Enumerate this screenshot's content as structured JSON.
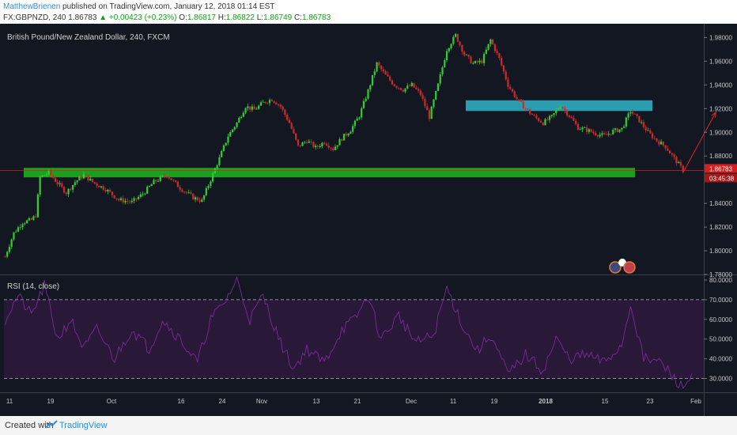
{
  "header": {
    "author": "MatthewBrienen",
    "published_text": "published on TradingView.com, January 12, 2018 01:14 EST",
    "symbol": "FX:GBPNZD, 240",
    "last": "1.86783",
    "change_arrow": "▲",
    "change": "+0.00423 (+0.23%)",
    "o_label": "O:",
    "o_val": "1.86817",
    "h_label": "H:",
    "h_val": "1.86822",
    "l_label": "L:",
    "l_val": "1.86749",
    "c_label": "C:",
    "c_val": "1.86783"
  },
  "footer": {
    "created_with": "Created with",
    "brand": "TradingView"
  },
  "colors": {
    "background": "#131722",
    "bull": "#32cd32",
    "bear": "#cc2b2b",
    "support_zone": "#1e9e1e",
    "resistance_zone": "#2a9db0",
    "rsi_line": "#7b2a9b",
    "rsi_band": "#2a1838",
    "price_line": "#d62020",
    "axis_text": "#c8c8c8"
  },
  "chart_data": [
    {
      "type": "candlestick",
      "title": "British Pound/New Zealand Dollar, 240, FXCM",
      "ylim": [
        1.78,
        1.985
      ],
      "y_ticks": [
        "1.98000",
        "1.96000",
        "1.94000",
        "1.92000",
        "1.90000",
        "1.88000",
        "1.84000",
        "1.82000",
        "1.80000",
        "1.78000"
      ],
      "x_ticks": [
        "11",
        "19",
        "Oct",
        "16",
        "24",
        "Nov",
        "13",
        "21",
        "Dec",
        "11",
        "19",
        "2018",
        "15",
        "23",
        "Feb"
      ],
      "last_price_label": "1.86783",
      "countdown_label": "03:45:38",
      "last_price": 1.86783,
      "close_path": [
        [
          0,
          1.795
        ],
        [
          4,
          1.815
        ],
        [
          8,
          1.824
        ],
        [
          12,
          1.826
        ],
        [
          14,
          1.83
        ],
        [
          16,
          1.862
        ],
        [
          20,
          1.866
        ],
        [
          24,
          1.857
        ],
        [
          28,
          1.849
        ],
        [
          32,
          1.858
        ],
        [
          36,
          1.864
        ],
        [
          40,
          1.858
        ],
        [
          46,
          1.852
        ],
        [
          52,
          1.843
        ],
        [
          58,
          1.841
        ],
        [
          63,
          1.848
        ],
        [
          68,
          1.858
        ],
        [
          74,
          1.864
        ],
        [
          80,
          1.853
        ],
        [
          86,
          1.845
        ],
        [
          90,
          1.842
        ],
        [
          94,
          1.86
        ],
        [
          98,
          1.878
        ],
        [
          102,
          1.897
        ],
        [
          106,
          1.908
        ],
        [
          110,
          1.922
        ],
        [
          114,
          1.919
        ],
        [
          118,
          1.925
        ],
        [
          122,
          1.928
        ],
        [
          126,
          1.922
        ],
        [
          130,
          1.908
        ],
        [
          134,
          1.888
        ],
        [
          138,
          1.893
        ],
        [
          142,
          1.887
        ],
        [
          146,
          1.892
        ],
        [
          150,
          1.886
        ],
        [
          154,
          1.895
        ],
        [
          158,
          1.902
        ],
        [
          162,
          1.914
        ],
        [
          166,
          1.935
        ],
        [
          170,
          1.958
        ],
        [
          174,
          1.948
        ],
        [
          178,
          1.94
        ],
        [
          182,
          1.936
        ],
        [
          186,
          1.94
        ],
        [
          190,
          1.932
        ],
        [
          194,
          1.913
        ],
        [
          198,
          1.94
        ],
        [
          202,
          1.97
        ],
        [
          206,
          1.982
        ],
        [
          210,
          1.966
        ],
        [
          214,
          1.958
        ],
        [
          218,
          1.96
        ],
        [
          222,
          1.978
        ],
        [
          226,
          1.962
        ],
        [
          230,
          1.94
        ],
        [
          234,
          1.928
        ],
        [
          238,
          1.92
        ],
        [
          242,
          1.913
        ],
        [
          246,
          1.908
        ],
        [
          250,
          1.913
        ],
        [
          254,
          1.923
        ],
        [
          258,
          1.914
        ],
        [
          262,
          1.904
        ],
        [
          266,
          1.902
        ],
        [
          270,
          1.899
        ],
        [
          274,
          1.897
        ],
        [
          278,
          1.901
        ],
        [
          282,
          1.903
        ],
        [
          286,
          1.918
        ],
        [
          290,
          1.91
        ],
        [
          294,
          1.9
        ],
        [
          298,
          1.893
        ],
        [
          302,
          1.888
        ],
        [
          306,
          1.878
        ],
        [
          310,
          1.868
        ]
      ],
      "zones": [
        {
          "name": "support",
          "y_low": 1.862,
          "y_high": 1.87
        },
        {
          "name": "resistance",
          "y_low": 1.918,
          "y_high": 1.927
        }
      ],
      "arrow": {
        "from": [
          310,
          1.866
        ],
        "to": [
          325,
          1.917
        ]
      }
    },
    {
      "type": "line",
      "title": "RSI (14, close)",
      "ylim": [
        23,
        82
      ],
      "y_ticks": [
        "80.0000",
        "70.0000",
        "60.0000",
        "50.0000",
        "40.0000",
        "30.0000"
      ],
      "bands": [
        30,
        70
      ],
      "path": [
        [
          0,
          60
        ],
        [
          6,
          72
        ],
        [
          12,
          62
        ],
        [
          18,
          77
        ],
        [
          24,
          50
        ],
        [
          30,
          60
        ],
        [
          36,
          45
        ],
        [
          42,
          55
        ],
        [
          50,
          40
        ],
        [
          58,
          55
        ],
        [
          66,
          45
        ],
        [
          72,
          60
        ],
        [
          80,
          50
        ],
        [
          88,
          38
        ],
        [
          94,
          60
        ],
        [
          100,
          68
        ],
        [
          106,
          80
        ],
        [
          112,
          60
        ],
        [
          118,
          72
        ],
        [
          126,
          48
        ],
        [
          132,
          35
        ],
        [
          138,
          45
        ],
        [
          146,
          38
        ],
        [
          154,
          55
        ],
        [
          160,
          60
        ],
        [
          166,
          72
        ],
        [
          172,
          50
        ],
        [
          180,
          62
        ],
        [
          188,
          48
        ],
        [
          196,
          52
        ],
        [
          202,
          76
        ],
        [
          210,
          55
        ],
        [
          216,
          44
        ],
        [
          222,
          52
        ],
        [
          230,
          32
        ],
        [
          238,
          42
        ],
        [
          246,
          34
        ],
        [
          252,
          50
        ],
        [
          258,
          40
        ],
        [
          266,
          42
        ],
        [
          274,
          38
        ],
        [
          282,
          47
        ],
        [
          286,
          68
        ],
        [
          292,
          40
        ],
        [
          300,
          38
        ],
        [
          306,
          30
        ],
        [
          310,
          25
        ],
        [
          314,
          32
        ]
      ]
    }
  ]
}
